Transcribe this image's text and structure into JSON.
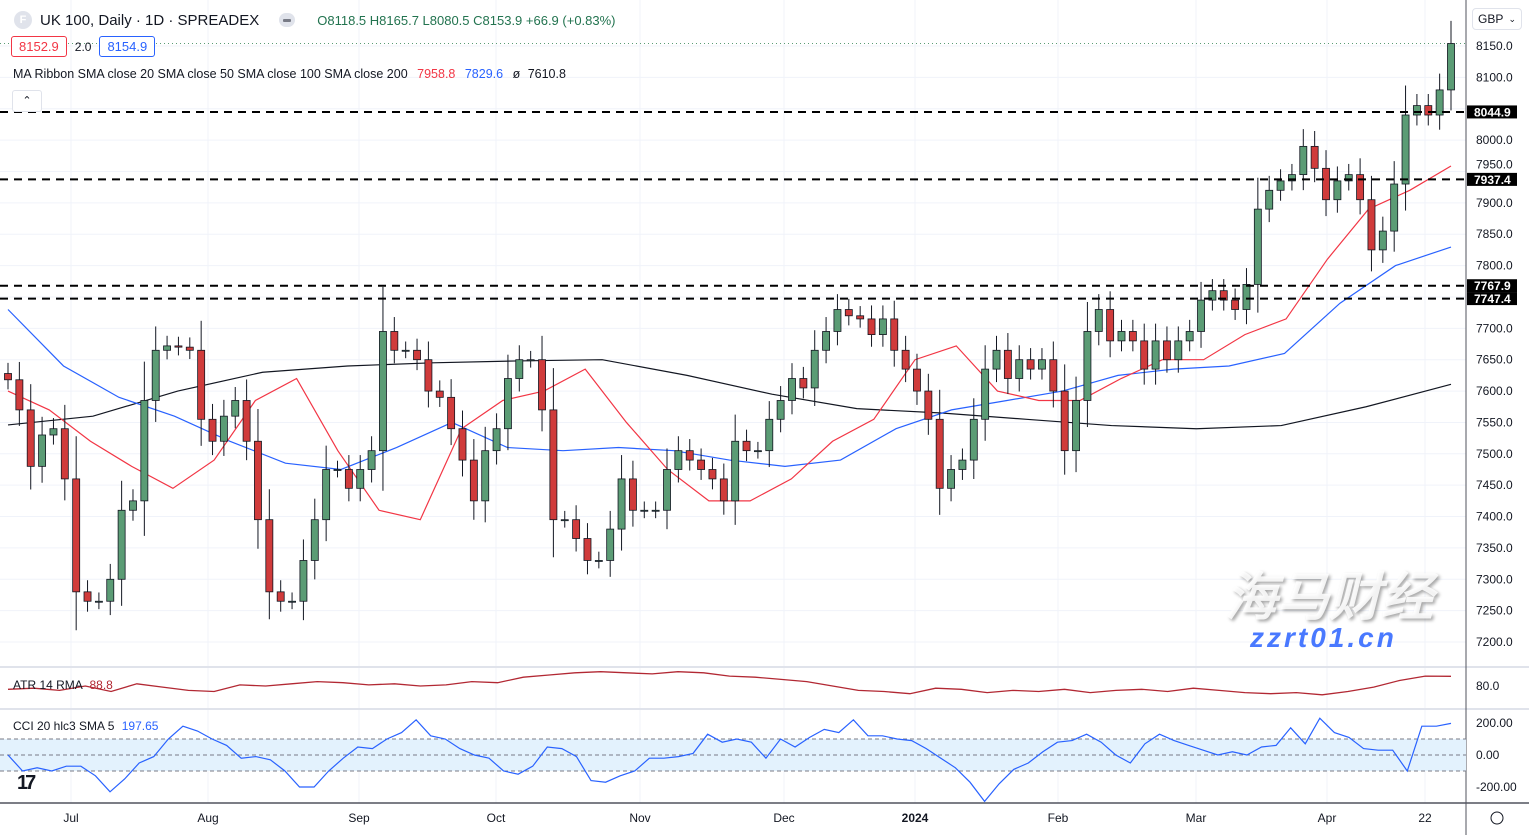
{
  "header": {
    "symbol_title": "UK 100, Daily · 1D · SPREADEX",
    "logo_letter": "F",
    "ohlc": "O8118.5 H8165.7 L8080.5 C8153.9 +66.9 (+0.83%)",
    "bid": "8152.9",
    "spread": "2.0",
    "ask": "8154.9"
  },
  "ma_legend": {
    "label": "MA Ribbon SMA close 20 SMA close 50 SMA close 100 SMA close 200",
    "sma20": "7958.8",
    "sma50": "7829.6",
    "sma100": "ø",
    "sma200": "7610.8"
  },
  "collapse_icon": "chevron-up-icon",
  "currency": "GBP",
  "colors": {
    "up": "#5b9c75",
    "down": "#d03b3b",
    "sma20": "#f23645",
    "sma50": "#2962ff",
    "sma200": "#131722",
    "atr": "#b22833",
    "cci": "#2962ff",
    "cci_band": "#e3f2fd"
  },
  "atr_legend": {
    "label": "ATR 14 RMA",
    "value": "88.8"
  },
  "cci_legend": {
    "label": "CCI 20 hlc3 SMA 5",
    "value": "197.65"
  },
  "watermark": {
    "cn": "海马财经",
    "url": "zzrt01.cn"
  },
  "chart_data": {
    "type": "candlestick",
    "price_axis": {
      "ticks": [
        "8150.0",
        "8100.0",
        "8000.0",
        "7950.0",
        "7900.0",
        "7850.0",
        "7800.0",
        "7700.0",
        "7650.0",
        "7600.0",
        "7550.0",
        "7500.0",
        "7450.0",
        "7400.0",
        "7350.0",
        "7300.0",
        "7250.0",
        "7200.0"
      ],
      "range": [
        7200,
        8150
      ]
    },
    "levels": [
      "8044.9",
      "7937.4",
      "7767.9",
      "7747.4"
    ],
    "time_axis": [
      "Jul",
      "Aug",
      "Sep",
      "Oct",
      "Nov",
      "Dec",
      "2024",
      "Feb",
      "Mar",
      "Apr",
      "22"
    ],
    "close": [
      7618,
      7570,
      7480,
      7530,
      7540,
      7460,
      7280,
      7265,
      7265,
      7300,
      7410,
      7425,
      7585,
      7665,
      7672,
      7670,
      7665,
      7555,
      7520,
      7560,
      7585,
      7520,
      7395,
      7280,
      7265,
      7265,
      7330,
      7395,
      7475,
      7475,
      7445,
      7475,
      7505,
      7695,
      7665,
      7665,
      7650,
      7600,
      7590,
      7540,
      7490,
      7425,
      7505,
      7540,
      7620,
      7650,
      7650,
      7570,
      7395,
      7395,
      7365,
      7330,
      7330,
      7380,
      7460,
      7410,
      7410,
      7410,
      7475,
      7505,
      7490,
      7475,
      7460,
      7425,
      7520,
      7505,
      7505,
      7555,
      7585,
      7620,
      7605,
      7665,
      7695,
      7730,
      7720,
      7715,
      7690,
      7715,
      7665,
      7635,
      7600,
      7555,
      7445,
      7475,
      7490,
      7555,
      7635,
      7665,
      7620,
      7650,
      7635,
      7650,
      7600,
      7505,
      7585,
      7695,
      7730,
      7680,
      7695,
      7680,
      7635,
      7680,
      7650,
      7680,
      7695,
      7745,
      7760,
      7745,
      7730,
      7770,
      7890,
      7920,
      7935,
      7945,
      7990,
      7955,
      7905,
      7935,
      7945,
      7905,
      7825,
      7855,
      7930,
      8040,
      8055,
      8040,
      8080,
      8153.9
    ],
    "sma20": [
      7600,
      7570,
      7520,
      7480,
      7445,
      7490,
      7585,
      7620,
      7505,
      7410,
      7395,
      7540,
      7585,
      7600,
      7635,
      7550,
      7475,
      7425,
      7425,
      7460,
      7520,
      7555,
      7650,
      7672,
      7600,
      7585,
      7585,
      7620,
      7650,
      7650,
      7690,
      7715,
      7810,
      7890,
      7920,
      7958.8
    ],
    "sma50": [
      7730,
      7640,
      7590,
      7560,
      7520,
      7485,
      7475,
      7510,
      7550,
      7510,
      7505,
      7510,
      7505,
      7490,
      7480,
      7490,
      7540,
      7570,
      7585,
      7600,
      7625,
      7635,
      7640,
      7660,
      7740,
      7800,
      7829.6
    ],
    "sma200": [
      7546,
      7560,
      7600,
      7630,
      7640,
      7645,
      7648,
      7650,
      7625,
      7595,
      7572,
      7565,
      7555,
      7545,
      7540,
      7545,
      7575,
      7610.8
    ],
    "atr": {
      "axis_tick": "80.0",
      "values": [
        77,
        78,
        76,
        80,
        75,
        82,
        79,
        76,
        75,
        81,
        80,
        82,
        84,
        83,
        81,
        82,
        80,
        81,
        84,
        83,
        88,
        90,
        92,
        93,
        92,
        91,
        93,
        92,
        89,
        88,
        86,
        84,
        80,
        76,
        75,
        73,
        78,
        77,
        74,
        76,
        75,
        77,
        74,
        76,
        77,
        75,
        78,
        76,
        74,
        73,
        74,
        72,
        75,
        79,
        85,
        89,
        88.8
      ]
    },
    "cci": {
      "axis_ticks": [
        "200.00",
        "0.00",
        "-200.00"
      ],
      "band": [
        -100,
        100
      ],
      "values": [
        0,
        -100,
        -80,
        -100,
        -70,
        -70,
        -130,
        -230,
        -150,
        -50,
        -10,
        100,
        180,
        150,
        100,
        60,
        -20,
        -10,
        -30,
        -100,
        -200,
        -200,
        -100,
        -20,
        50,
        40,
        100,
        140,
        220,
        120,
        100,
        40,
        0,
        -20,
        -100,
        -120,
        -70,
        50,
        40,
        -10,
        -160,
        -170,
        -130,
        -100,
        -20,
        -20,
        -10,
        10,
        130,
        80,
        100,
        80,
        -20,
        100,
        50,
        110,
        160,
        140,
        220,
        120,
        120,
        100,
        90,
        40,
        -20,
        -80,
        -170,
        -290,
        -180,
        -90,
        -50,
        20,
        80,
        90,
        130,
        80,
        0,
        -50,
        70,
        130,
        90,
        60,
        30,
        0,
        20,
        0,
        50,
        60,
        170,
        70,
        230,
        140,
        110,
        40,
        30,
        30,
        -100,
        180,
        180,
        197.65
      ]
    }
  }
}
